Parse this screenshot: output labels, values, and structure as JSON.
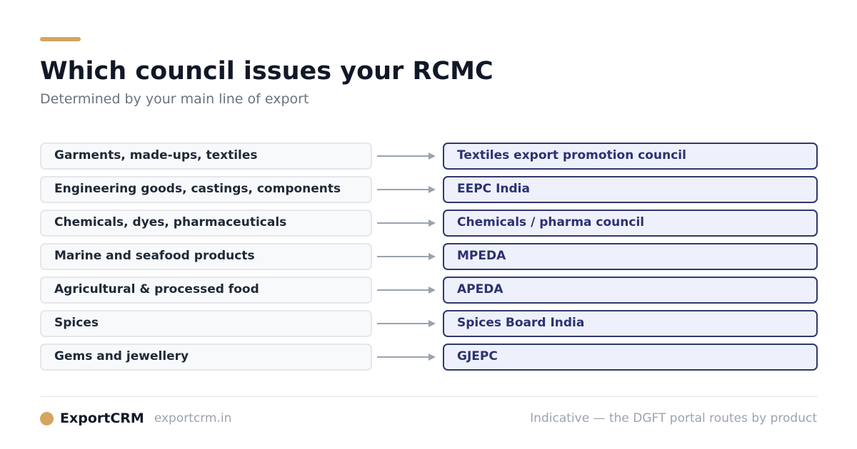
{
  "header": {
    "title": "Which council issues your RCMC",
    "subtitle": "Determined by your main line of export"
  },
  "mappings": [
    {
      "product": "Garments, made-ups, textiles",
      "council": "Textiles export promotion council"
    },
    {
      "product": "Engineering goods, castings, components",
      "council": "EEPC India"
    },
    {
      "product": "Chemicals, dyes, pharmaceuticals",
      "council": "Chemicals / pharma council"
    },
    {
      "product": "Marine and seafood products",
      "council": "MPEDA"
    },
    {
      "product": "Agricultural & processed food",
      "council": "APEDA"
    },
    {
      "product": "Spices",
      "council": "Spices Board India"
    },
    {
      "product": "Gems and jewellery",
      "council": "GJEPC"
    }
  ],
  "footer": {
    "brand": "ExportCRM",
    "url": "exportcrm.in",
    "note": "Indicative — the DGFT portal routes by product"
  },
  "colors": {
    "accent": "#d4a55e",
    "council_border": "#30386e",
    "council_fill": "#eef0fb",
    "arrow": "#9aa3af"
  },
  "icons": {
    "brand_mark": "gold-circle-icon",
    "connector": "arrow-right-icon"
  }
}
